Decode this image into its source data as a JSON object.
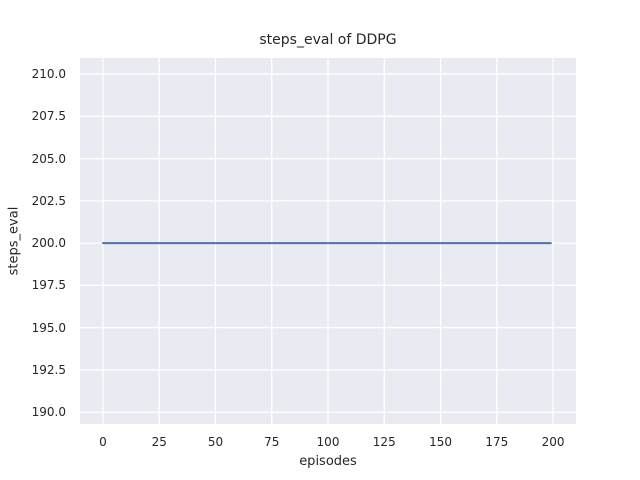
{
  "figure": {
    "background": "#ffffff",
    "text_color": "#262626"
  },
  "chart_data": {
    "type": "line",
    "title": "steps_eval of DDPG",
    "xlabel": "episodes",
    "ylabel": "steps_eval",
    "x_ticks": {
      "values": [
        0,
        25,
        50,
        75,
        100,
        125,
        150,
        175,
        200
      ],
      "labels": [
        "0",
        "25",
        "50",
        "75",
        "100",
        "125",
        "150",
        "175",
        "200"
      ]
    },
    "y_ticks": {
      "values": [
        190.0,
        192.5,
        195.0,
        197.5,
        200.0,
        202.5,
        205.0,
        207.5,
        210.0
      ],
      "labels": [
        "190.0",
        "192.5",
        "195.0",
        "197.5",
        "200.0",
        "202.5",
        "205.0",
        "207.5",
        "210.0"
      ]
    },
    "xlim": [
      -10.2,
      210.2
    ],
    "ylim": [
      189.3,
      210.95
    ],
    "grid": true,
    "legend": "none",
    "plot_background": "#eaeaf2",
    "gridline_color": "#ffffff",
    "series": [
      {
        "name": "steps_eval",
        "color": "#4c72b0",
        "line_width": 2,
        "x": [
          0,
          199
        ],
        "y": [
          200,
          200
        ]
      }
    ]
  }
}
